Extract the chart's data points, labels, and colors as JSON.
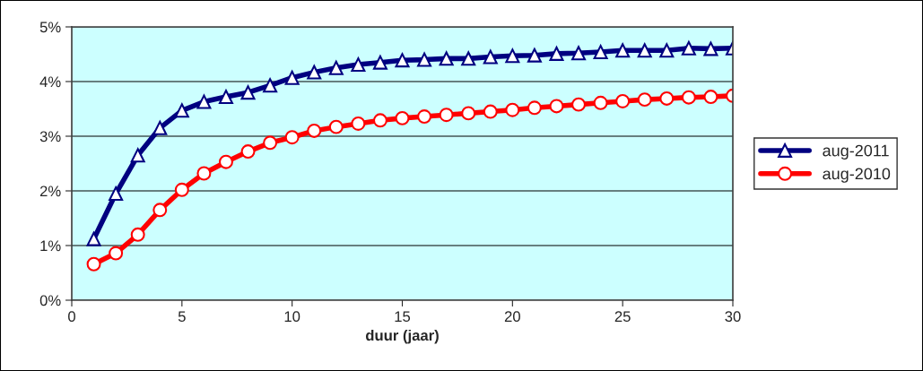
{
  "chart_data": {
    "type": "line",
    "xlabel": "duur (jaar)",
    "x": [
      1,
      2,
      3,
      4,
      5,
      6,
      7,
      8,
      9,
      10,
      11,
      12,
      13,
      14,
      15,
      16,
      17,
      18,
      19,
      20,
      21,
      22,
      23,
      24,
      25,
      26,
      27,
      28,
      29,
      30
    ],
    "series": [
      {
        "name": "aug-2011",
        "color": "#000080",
        "marker": "triangle",
        "values": [
          1.12,
          1.95,
          2.65,
          3.15,
          3.47,
          3.63,
          3.72,
          3.8,
          3.93,
          4.07,
          4.17,
          4.25,
          4.31,
          4.35,
          4.39,
          4.4,
          4.42,
          4.42,
          4.45,
          4.47,
          4.48,
          4.51,
          4.52,
          4.54,
          4.57,
          4.57,
          4.57,
          4.61,
          4.6,
          4.61
        ]
      },
      {
        "name": "aug-2010",
        "color": "#ff0000",
        "marker": "circle",
        "values": [
          0.66,
          0.86,
          1.2,
          1.65,
          2.02,
          2.32,
          2.53,
          2.72,
          2.88,
          2.98,
          3.1,
          3.17,
          3.23,
          3.29,
          3.33,
          3.36,
          3.39,
          3.42,
          3.45,
          3.48,
          3.52,
          3.55,
          3.58,
          3.61,
          3.64,
          3.67,
          3.69,
          3.71,
          3.72,
          3.74
        ]
      }
    ],
    "xlim": [
      0,
      30
    ],
    "xticks": [
      0,
      5,
      10,
      15,
      20,
      25,
      30
    ],
    "ylim": [
      0,
      5
    ],
    "yticks": [
      {
        "value": 0,
        "label": "0%"
      },
      {
        "value": 1,
        "label": "1%"
      },
      {
        "value": 2,
        "label": "2%"
      },
      {
        "value": 3,
        "label": "3%"
      },
      {
        "value": 4,
        "label": "4%"
      },
      {
        "value": 5,
        "label": "5%"
      }
    ],
    "grid": "y",
    "legend": "right",
    "line_style": "solid"
  }
}
